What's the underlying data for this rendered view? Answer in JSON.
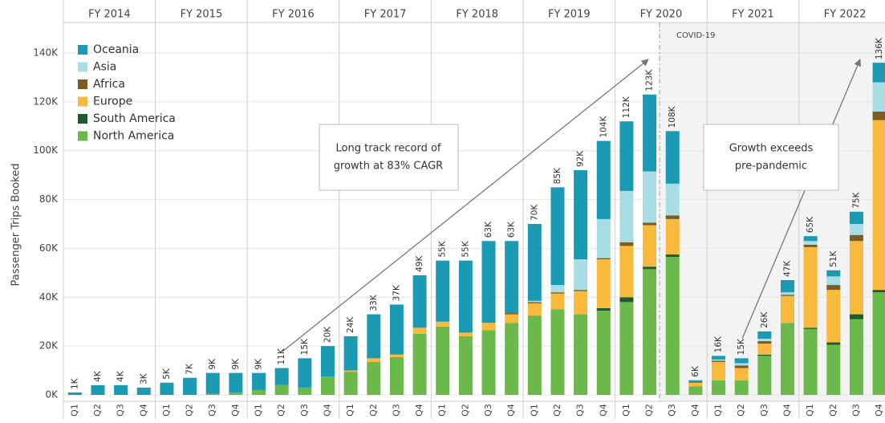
{
  "chart_data": {
    "type": "stacked-bar",
    "y_label": "Passenger Trips Booked",
    "years": [
      "FY 2014",
      "FY 2015",
      "FY 2016",
      "FY 2017",
      "FY 2018",
      "FY 2019",
      "FY 2020",
      "FY 2021",
      "FY 2022"
    ],
    "categories": [
      "Q1",
      "Q2",
      "Q3",
      "Q4",
      "Q1",
      "Q2",
      "Q3",
      "Q4",
      "Q1",
      "Q2",
      "Q3",
      "Q4",
      "Q1",
      "Q2",
      "Q3",
      "Q4",
      "Q1",
      "Q2",
      "Q3",
      "Q4",
      "Q1",
      "Q2",
      "Q3",
      "Q4",
      "Q1",
      "Q2",
      "Q3",
      "Q4",
      "Q1",
      "Q2",
      "Q3",
      "Q4",
      "Q1",
      "Q2",
      "Q3",
      "Q4"
    ],
    "series": [
      {
        "name": "Oceania",
        "color": "#1b9ab3",
        "values": [
          1000,
          4000,
          4000,
          3000,
          5000,
          7000,
          8500,
          8000,
          7000,
          7000,
          12000,
          12500,
          14000,
          18000,
          20500,
          21500,
          25000,
          29500,
          33500,
          29500,
          31500,
          40000,
          36500,
          32000,
          28500,
          31500,
          21500,
          500,
          1500,
          2000,
          3000,
          5000,
          2000,
          2500,
          5000,
          8000
        ]
      },
      {
        "name": "Asia",
        "color": "#a9dde4",
        "values": [
          0,
          0,
          0,
          0,
          0,
          0,
          0,
          0,
          0,
          0,
          0,
          0,
          0,
          0,
          0,
          0,
          0,
          0,
          0,
          0,
          500,
          3000,
          12500,
          16000,
          21000,
          21000,
          13000,
          0,
          500,
          1000,
          1000,
          1000,
          1500,
          3500,
          4500,
          12000
        ]
      },
      {
        "name": "Africa",
        "color": "#7b5b22",
        "values": [
          0,
          0,
          0,
          0,
          0,
          0,
          0,
          0,
          0,
          0,
          0,
          0,
          0,
          0,
          0,
          0,
          0,
          0,
          0,
          500,
          500,
          500,
          500,
          500,
          1500,
          1000,
          1500,
          500,
          500,
          1000,
          1000,
          500,
          1000,
          2000,
          2500,
          3500
        ]
      },
      {
        "name": "Europe",
        "color": "#f9b93c",
        "values": [
          0,
          0,
          0,
          0,
          0,
          0,
          0,
          0,
          0,
          0,
          0,
          0,
          500,
          1500,
          1000,
          2500,
          2000,
          1500,
          3000,
          3500,
          5000,
          6500,
          9500,
          20000,
          21000,
          17000,
          14500,
          1500,
          7500,
          5000,
          4500,
          11000,
          33000,
          21500,
          30000,
          69500
        ]
      },
      {
        "name": "South America",
        "color": "#1e5b2e",
        "values": [
          0,
          0,
          0,
          0,
          0,
          0,
          0,
          0,
          0,
          0,
          0,
          0,
          0,
          0,
          0,
          0,
          0,
          0,
          0,
          0,
          0,
          0,
          0,
          1000,
          2000,
          1000,
          1000,
          0,
          0,
          0,
          500,
          0,
          500,
          1000,
          2000,
          1000
        ]
      },
      {
        "name": "North America",
        "color": "#6bb84b",
        "values": [
          0,
          0,
          0,
          0,
          0,
          0,
          500,
          1000,
          2000,
          4000,
          3000,
          7500,
          9500,
          13500,
          15500,
          25000,
          28000,
          24000,
          26500,
          29500,
          32500,
          35000,
          33000,
          34500,
          38000,
          51500,
          56500,
          3500,
          6000,
          6000,
          16000,
          29500,
          27000,
          20500,
          31000,
          42000
        ]
      }
    ],
    "totals": [
      1000,
      4000,
      4000,
      3000,
      5000,
      7000,
      9000,
      9000,
      9000,
      11000,
      15000,
      20000,
      24000,
      33000,
      37000,
      49000,
      55000,
      55000,
      63000,
      63000,
      70000,
      85000,
      92000,
      104000,
      112000,
      123000,
      108000,
      6000,
      16000,
      15000,
      26000,
      47000,
      65000,
      51000,
      75000,
      136000
    ],
    "total_labels": [
      "1K",
      "4K",
      "4K",
      "3K",
      "5K",
      "7K",
      "9K",
      "9K",
      "9K",
      "11K",
      "15K",
      "20K",
      "24K",
      "33K",
      "37K",
      "49K",
      "55K",
      "55K",
      "63K",
      "63K",
      "70K",
      "85K",
      "92K",
      "104K",
      "112K",
      "123K",
      "108K",
      "6K",
      "16K",
      "15K",
      "26K",
      "47K",
      "65K",
      "51K",
      "75K",
      "136K"
    ],
    "ylim": [
      0,
      160000
    ],
    "yticks": [
      {
        "value": 0,
        "label": "0K"
      },
      {
        "value": 20000,
        "label": "20K"
      },
      {
        "value": 40000,
        "label": "40K"
      },
      {
        "value": 60000,
        "label": "60K"
      },
      {
        "value": 80000,
        "label": "80K"
      },
      {
        "value": 100000,
        "label": "100K"
      },
      {
        "value": 120000,
        "label": "120K"
      },
      {
        "value": 140000,
        "label": "140K"
      }
    ],
    "grid": true,
    "legend": "upper left",
    "annotations": [
      {
        "lines": [
          "Long track record of",
          "growth at 83% CAGR"
        ]
      },
      {
        "lines": [
          "Growth exceeds",
          "pre-pandemic"
        ]
      },
      {
        "lines": [
          "COVID-19"
        ]
      }
    ]
  }
}
